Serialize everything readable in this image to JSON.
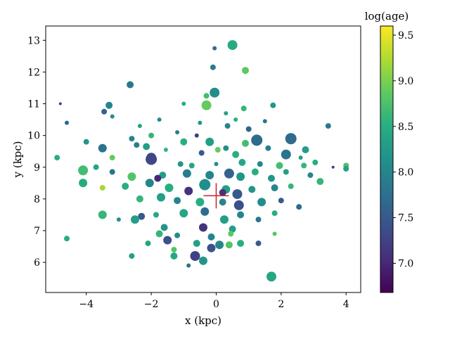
{
  "chart_data": {
    "type": "scatter",
    "title": "",
    "xlabel": "x (kpc)",
    "ylabel": "y (kpc)",
    "xlim": [
      -5.25,
      4.45
    ],
    "ylim": [
      5.05,
      13.45
    ],
    "xticks": [
      -4,
      -2,
      0,
      2,
      4
    ],
    "xtick_labels": [
      "−4",
      "−2",
      "0",
      "2",
      "4"
    ],
    "yticks": [
      6,
      7,
      8,
      9,
      10,
      11,
      12,
      13
    ],
    "ytick_labels": [
      "6",
      "7",
      "8",
      "9",
      "10",
      "11",
      "12",
      "13"
    ],
    "grid": false,
    "colormap": "viridis",
    "colorbar": {
      "label": "log(age)",
      "range": [
        6.68,
        9.6
      ],
      "ticks": [
        7.0,
        7.5,
        8.0,
        8.5,
        9.0,
        9.5
      ],
      "tick_labels": [
        "7.0",
        "7.5",
        "8.0",
        "8.5",
        "9.0",
        "9.5"
      ]
    },
    "sun_marker": {
      "x": 0.0,
      "y": 8.1,
      "color": "#cc2222"
    },
    "points": [
      [
        0.5,
        12.85,
        8.45,
        7
      ],
      [
        -0.05,
        12.75,
        7.7,
        3
      ],
      [
        0.9,
        12.05,
        8.85,
        5
      ],
      [
        -0.1,
        12.15,
        7.9,
        4
      ],
      [
        -0.05,
        11.35,
        8.1,
        7
      ],
      [
        -2.65,
        11.6,
        7.85,
        5
      ],
      [
        -0.3,
        11.25,
        8.7,
        4
      ],
      [
        -4.8,
        11.0,
        7.25,
        2
      ],
      [
        -3.3,
        10.95,
        8.0,
        5
      ],
      [
        -1.0,
        11.0,
        8.5,
        3
      ],
      [
        -0.3,
        10.95,
        8.9,
        7
      ],
      [
        -1.75,
        10.5,
        8.1,
        3
      ],
      [
        -4.6,
        10.4,
        7.65,
        3
      ],
      [
        -3.45,
        10.75,
        7.6,
        4
      ],
      [
        -3.2,
        10.6,
        8.1,
        3
      ],
      [
        0.85,
        10.85,
        8.6,
        4
      ],
      [
        1.75,
        10.95,
        8.2,
        4
      ],
      [
        3.45,
        10.3,
        7.85,
        4
      ],
      [
        -2.35,
        10.3,
        8.35,
        3
      ],
      [
        0.35,
        10.3,
        8.0,
        4
      ],
      [
        -0.2,
        9.8,
        8.3,
        6
      ],
      [
        1.25,
        9.85,
        7.7,
        8
      ],
      [
        2.3,
        9.9,
        7.7,
        8
      ],
      [
        0.9,
        9.75,
        8.7,
        5
      ],
      [
        -4.0,
        9.8,
        8.2,
        4
      ],
      [
        -3.5,
        9.6,
        7.8,
        6
      ],
      [
        -3.2,
        9.3,
        8.9,
        4
      ],
      [
        -2.45,
        9.7,
        7.9,
        4
      ],
      [
        -2.15,
        9.65,
        8.3,
        5
      ],
      [
        -1.55,
        9.55,
        8.6,
        3
      ],
      [
        -1.0,
        9.8,
        8.5,
        5
      ],
      [
        -0.45,
        9.45,
        7.5,
        4
      ],
      [
        0.05,
        9.55,
        8.9,
        4
      ],
      [
        0.3,
        9.6,
        8.1,
        4
      ],
      [
        0.6,
        9.4,
        8.5,
        5
      ],
      [
        1.6,
        9.6,
        7.9,
        4
      ],
      [
        2.75,
        9.55,
        8.3,
        5
      ],
      [
        -2.0,
        9.3,
        7.4,
        7
      ],
      [
        -1.1,
        9.1,
        8.2,
        4
      ],
      [
        -0.75,
        9.05,
        8.4,
        4
      ],
      [
        0.0,
        9.1,
        8.1,
        3
      ],
      [
        0.8,
        9.15,
        8.4,
        5
      ],
      [
        1.35,
        9.1,
        8.0,
        4
      ],
      [
        1.95,
        9.05,
        8.7,
        5
      ],
      [
        2.6,
        9.3,
        8.3,
        3
      ],
      [
        3.05,
        9.15,
        8.5,
        4
      ],
      [
        3.6,
        9.0,
        7.2,
        2
      ],
      [
        4.0,
        9.05,
        8.75,
        4
      ],
      [
        -4.1,
        8.9,
        8.7,
        7
      ],
      [
        -3.7,
        9.0,
        8.4,
        4
      ],
      [
        -2.6,
        8.7,
        8.8,
        6
      ],
      [
        -1.65,
        8.75,
        8.3,
        5
      ],
      [
        -0.9,
        8.8,
        7.9,
        6
      ],
      [
        -0.2,
        8.75,
        8.0,
        6
      ],
      [
        0.4,
        8.8,
        7.6,
        7
      ],
      [
        0.75,
        8.7,
        8.2,
        6
      ],
      [
        1.2,
        8.85,
        8.5,
        5
      ],
      [
        1.7,
        8.65,
        8.2,
        5
      ],
      [
        2.15,
        8.85,
        8.3,
        4
      ],
      [
        2.9,
        8.75,
        8.0,
        4
      ],
      [
        3.2,
        8.55,
        8.6,
        5
      ],
      [
        -4.1,
        8.5,
        8.45,
        6
      ],
      [
        -3.5,
        8.35,
        9.2,
        4
      ],
      [
        -2.8,
        8.4,
        8.5,
        5
      ],
      [
        -2.05,
        8.5,
        8.0,
        6
      ],
      [
        -1.45,
        8.35,
        8.5,
        6
      ],
      [
        -0.85,
        8.25,
        7.1,
        6
      ],
      [
        -0.35,
        8.45,
        8.1,
        8
      ],
      [
        0.3,
        8.3,
        8.3,
        6
      ],
      [
        0.65,
        8.15,
        7.5,
        7
      ],
      [
        1.1,
        8.3,
        8.2,
        5
      ],
      [
        1.8,
        8.35,
        8.0,
        5
      ],
      [
        2.3,
        8.4,
        8.6,
        4
      ],
      [
        -2.35,
        8.0,
        8.6,
        5
      ],
      [
        -1.7,
        8.05,
        8.3,
        6
      ],
      [
        -1.2,
        7.95,
        8.0,
        5
      ],
      [
        -0.5,
        7.9,
        8.5,
        6
      ],
      [
        0.2,
        7.9,
        8.0,
        5
      ],
      [
        0.7,
        7.8,
        7.4,
        7
      ],
      [
        1.4,
        7.9,
        8.1,
        6
      ],
      [
        2.0,
        7.95,
        7.5,
        4
      ],
      [
        2.55,
        7.75,
        7.7,
        4
      ],
      [
        -3.5,
        7.5,
        8.6,
        6
      ],
      [
        -2.3,
        7.45,
        7.5,
        5
      ],
      [
        -1.85,
        7.5,
        8.4,
        4
      ],
      [
        -1.0,
        7.55,
        8.4,
        6
      ],
      [
        -0.35,
        7.6,
        7.7,
        6
      ],
      [
        0.25,
        7.35,
        8.3,
        6
      ],
      [
        0.75,
        7.5,
        8.0,
        5
      ],
      [
        1.3,
        7.35,
        7.8,
        4
      ],
      [
        1.8,
        7.55,
        8.5,
        4
      ],
      [
        -2.5,
        7.35,
        8.3,
        6
      ],
      [
        -1.6,
        7.1,
        8.2,
        5
      ],
      [
        -0.4,
        7.1,
        7.1,
        6
      ],
      [
        0.5,
        7.05,
        8.3,
        5
      ],
      [
        -3.0,
        7.35,
        8.1,
        3
      ],
      [
        -1.75,
        6.9,
        8.6,
        5
      ],
      [
        -1.2,
        6.85,
        8.1,
        4
      ],
      [
        -0.15,
        6.8,
        8.0,
        5
      ],
      [
        0.45,
        6.9,
        8.85,
        4
      ],
      [
        1.8,
        6.9,
        8.8,
        3
      ],
      [
        -4.6,
        6.75,
        8.5,
        4
      ],
      [
        -2.1,
        6.6,
        8.4,
        4
      ],
      [
        -1.5,
        6.7,
        7.4,
        6
      ],
      [
        -0.6,
        6.6,
        8.3,
        5
      ],
      [
        0.1,
        6.55,
        8.0,
        6
      ],
      [
        0.4,
        6.55,
        8.8,
        5
      ],
      [
        0.75,
        6.6,
        8.5,
        5
      ],
      [
        1.3,
        6.6,
        7.5,
        4
      ],
      [
        -1.3,
        6.4,
        8.8,
        4
      ],
      [
        -0.15,
        6.45,
        7.4,
        6
      ],
      [
        -2.6,
        6.2,
        8.3,
        4
      ],
      [
        -1.3,
        6.2,
        8.4,
        5
      ],
      [
        -0.65,
        6.2,
        7.25,
        7
      ],
      [
        -0.4,
        6.05,
        8.2,
        6
      ],
      [
        -0.85,
        5.9,
        7.8,
        3
      ],
      [
        1.7,
        5.55,
        8.4,
        7
      ],
      [
        -4.9,
        9.3,
        8.5,
        4
      ],
      [
        4.0,
        8.95,
        8.3,
        4
      ],
      [
        -2.0,
        10.0,
        8.6,
        4
      ],
      [
        -2.6,
        9.9,
        8.0,
        4
      ],
      [
        -1.2,
        10.1,
        7.9,
        3
      ],
      [
        1.5,
        10.45,
        7.8,
        3
      ],
      [
        1.0,
        10.2,
        7.6,
        4
      ],
      [
        0.6,
        10.5,
        8.5,
        3
      ],
      [
        -0.5,
        10.4,
        8.2,
        3
      ],
      [
        -1.8,
        8.65,
        7.0,
        5
      ],
      [
        -2.0,
        9.25,
        7.3,
        8
      ],
      [
        0.2,
        8.2,
        7.1,
        5
      ],
      [
        2.15,
        9.4,
        7.8,
        7
      ],
      [
        2.7,
        9.05,
        8.6,
        4
      ],
      [
        -3.2,
        8.85,
        7.8,
        4
      ],
      [
        -0.6,
        10.0,
        7.2,
        3
      ],
      [
        0.3,
        10.7,
        8.35,
        3
      ]
    ]
  }
}
